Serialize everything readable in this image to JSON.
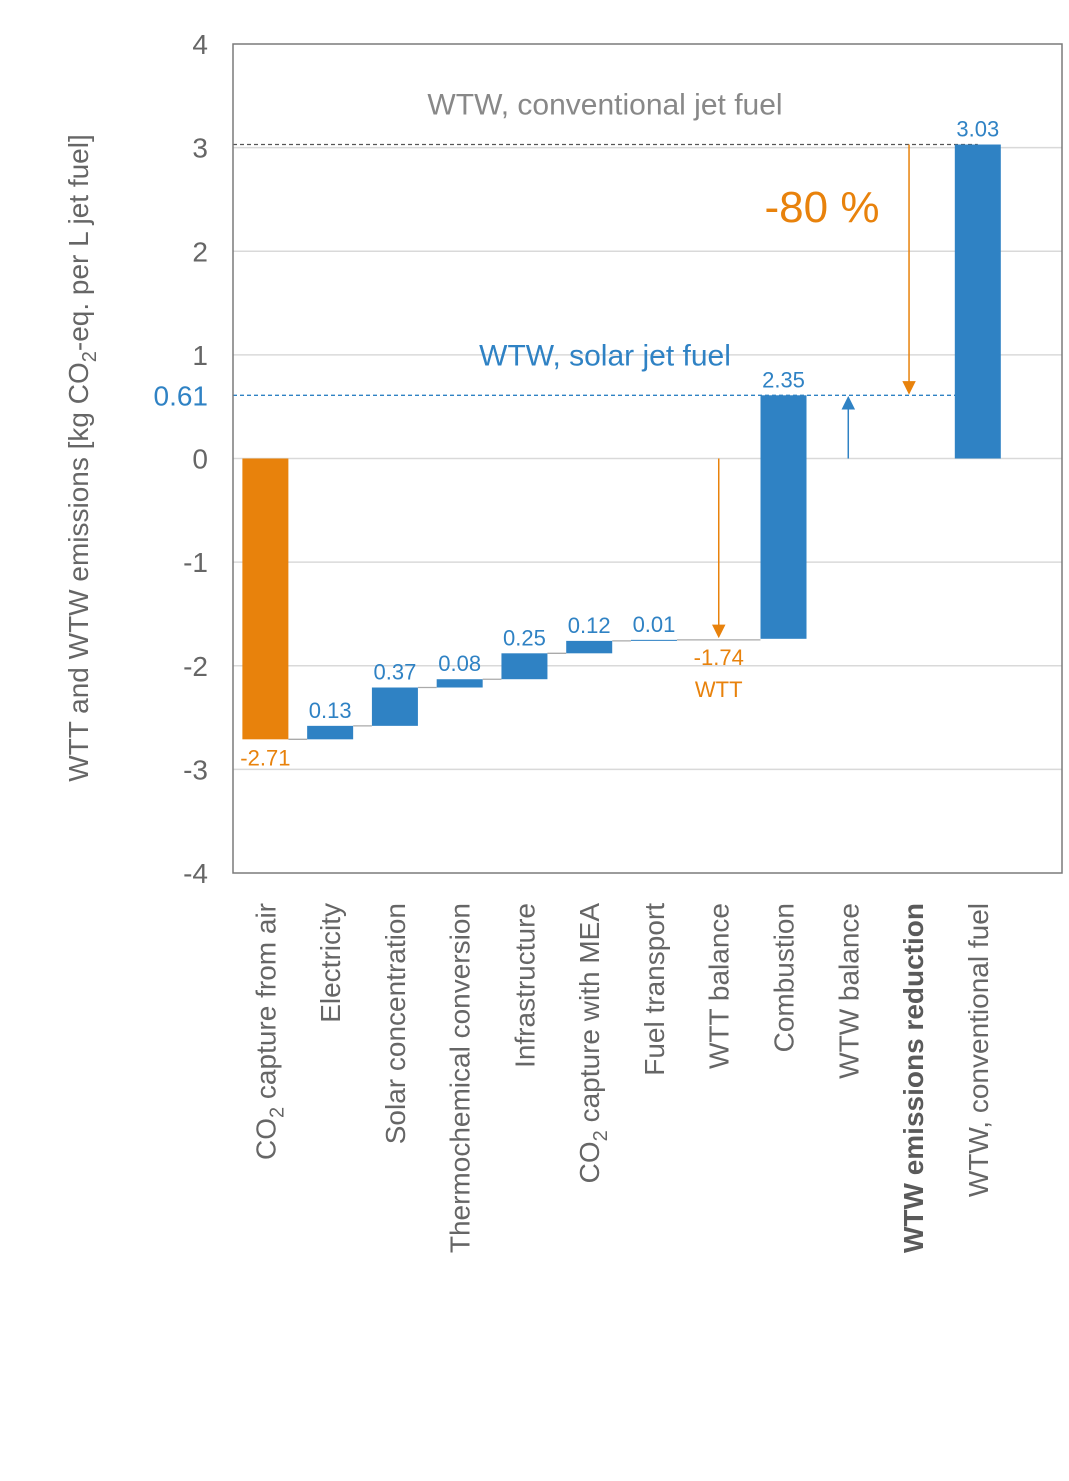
{
  "chart_data": {
    "type": "bar",
    "ylabel_parts": [
      "WTT and WTW emissions [kg CO",
      "2",
      "-eq. per L jet fuel]"
    ],
    "ylim": [
      -4,
      4
    ],
    "yticks": [
      4,
      3,
      2,
      1,
      0,
      -1,
      -2,
      -3,
      -4
    ],
    "grid": true,
    "colors": {
      "orange": "#e8820c",
      "blue": "#2f82c4",
      "grey": "#888888"
    },
    "categories": [
      {
        "parts": [
          "CO",
          "2",
          " capture from air"
        ]
      },
      {
        "parts": [
          "Electricity"
        ]
      },
      {
        "parts": [
          "Solar concentration"
        ]
      },
      {
        "parts": [
          "Thermochemical conversion"
        ]
      },
      {
        "parts": [
          "Infrastructure"
        ]
      },
      {
        "parts": [
          "CO",
          "2",
          " capture with MEA"
        ]
      },
      {
        "parts": [
          "Fuel transport"
        ]
      },
      {
        "parts": [
          "WTT balance"
        ]
      },
      {
        "parts": [
          "Combustion"
        ]
      },
      {
        "parts": [
          "WTW balance"
        ]
      },
      {
        "parts": [
          "WTW emissions reduction"
        ],
        "bold": true
      },
      {
        "parts": [
          "WTW, conventional fuel"
        ]
      }
    ],
    "bars": [
      {
        "index": 0,
        "start": 0,
        "end": -2.71,
        "color": "orange",
        "label": "-2.71",
        "label_pos": "below"
      },
      {
        "index": 1,
        "start": -2.71,
        "end": -2.58,
        "color": "blue",
        "label": "0.13",
        "label_pos": "above"
      },
      {
        "index": 2,
        "start": -2.58,
        "end": -2.21,
        "color": "blue",
        "label": "0.37",
        "label_pos": "above"
      },
      {
        "index": 3,
        "start": -2.21,
        "end": -2.13,
        "color": "blue",
        "label": "0.08",
        "label_pos": "above"
      },
      {
        "index": 4,
        "start": -2.13,
        "end": -1.88,
        "color": "blue",
        "label": "0.25",
        "label_pos": "above"
      },
      {
        "index": 5,
        "start": -1.88,
        "end": -1.76,
        "color": "blue",
        "label": "0.12",
        "label_pos": "above"
      },
      {
        "index": 6,
        "start": -1.76,
        "end": -1.75,
        "color": "blue",
        "label": "0.01",
        "label_pos": "above"
      },
      {
        "index": 8,
        "start": -1.74,
        "end": 0.61,
        "color": "blue",
        "label": "2.35",
        "label_pos": "above"
      },
      {
        "index": 11,
        "start": 0,
        "end": 3.03,
        "color": "blue",
        "label": "3.03",
        "label_pos": "above"
      }
    ],
    "wtt_balance": {
      "index": 7,
      "value": -1.74,
      "label": "-1.74",
      "sublabel": "WTT"
    },
    "wtw_balance": {
      "index": 9,
      "value": 0.61
    },
    "reference_lines": [
      {
        "value": 3.03,
        "text": "WTW, conventional jet fuel",
        "color": "grey"
      },
      {
        "value": 0.61,
        "text": "WTW, solar jet fuel",
        "color": "blue",
        "axis_label": "0.61"
      }
    ],
    "reduction": {
      "index": 10,
      "from": 3.03,
      "to": 0.61,
      "label": "-80 %"
    }
  }
}
